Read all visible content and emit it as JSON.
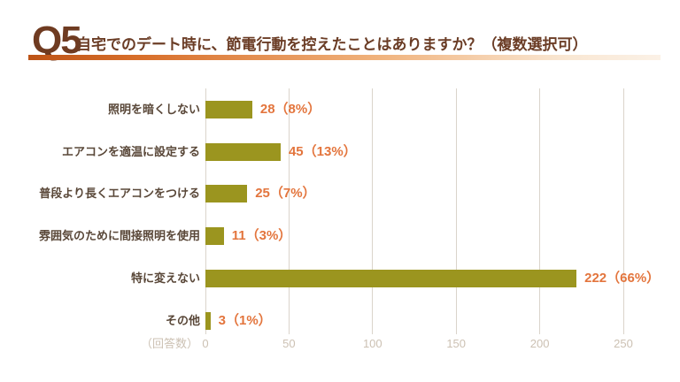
{
  "header": {
    "question_number": "Q5",
    "question_text": "自宅でのデート時に、節電行動を控えたことはありますか？（複数選択可）"
  },
  "chart_data": {
    "type": "bar",
    "orientation": "horizontal",
    "title": "",
    "categories": [
      "照明を暗くしない",
      "エアコンを適温に設定する",
      "普段より長くエアコンをつける",
      "雰囲気のために間接照明を使用",
      "特に変えない",
      "その他"
    ],
    "values": [
      28,
      45,
      25,
      11,
      222,
      3
    ],
    "percents": [
      8,
      13,
      7,
      3,
      66,
      1
    ],
    "value_labels": [
      "28（8%）",
      "45（13%）",
      "25（7%）",
      "11（3%）",
      "222（66%）",
      "3（1%）"
    ],
    "x_ticks": [
      0,
      50,
      100,
      150,
      200,
      250
    ],
    "xlim": [
      0,
      250
    ],
    "axis_unit_label": "（回答数）",
    "grid": true,
    "legend": false,
    "colors": {
      "bar": "#9b951f",
      "value_label": "#e3753d",
      "category_label": "#594738",
      "axis_label": "#ccc1b3",
      "grid_line": "#dad4cb",
      "question_number": "#6f3b21",
      "question_text": "#6b3d26"
    }
  }
}
